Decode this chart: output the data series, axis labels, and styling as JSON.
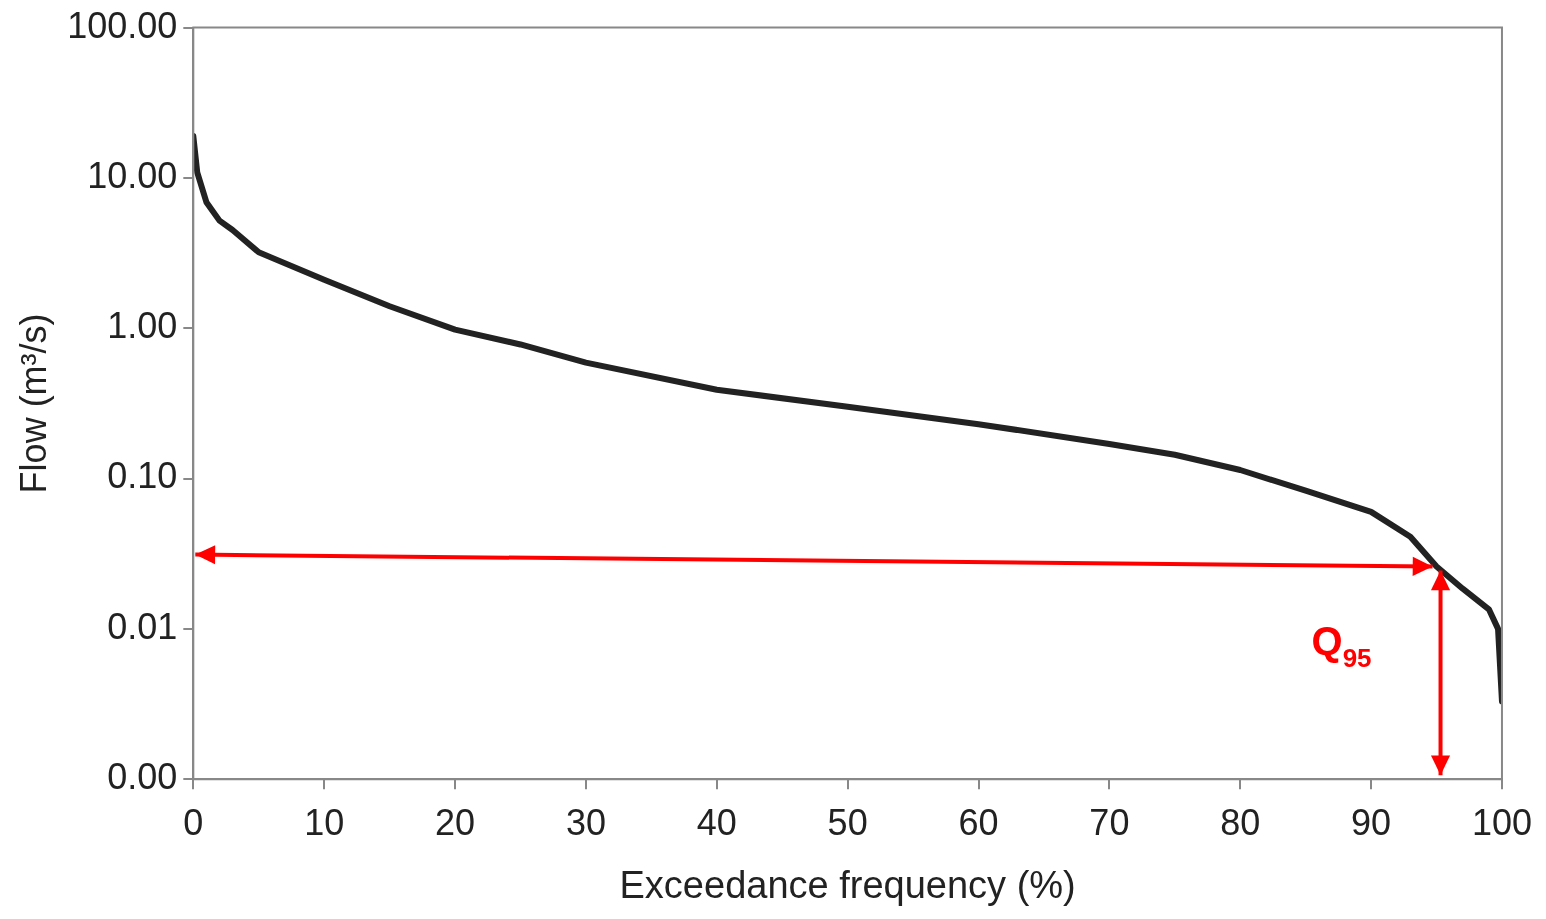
{
  "chart_data": {
    "type": "line",
    "xlabel": "Exceedance frequency (%)",
    "ylabel": "Flow (m³/s)",
    "log": "y",
    "x": [
      0,
      0.3,
      1,
      2,
      3,
      5,
      10,
      15,
      20,
      25,
      30,
      40,
      50,
      60,
      70,
      75,
      80,
      85,
      90,
      93,
      95,
      97,
      99,
      99.7,
      100
    ],
    "series": [
      {
        "color": "#222222",
        "values": [
          19,
          10.9,
          6.9,
          5.2,
          4.5,
          3.2,
          2.1,
          1.4,
          0.98,
          0.78,
          0.59,
          0.39,
          0.3,
          0.23,
          0.17,
          0.144,
          0.114,
          0.083,
          0.06,
          0.041,
          0.026,
          0.0185,
          0.0135,
          0.01,
          0.0033
        ]
      }
    ],
    "xlim": [
      0,
      100
    ],
    "xticks": [
      0,
      10,
      20,
      30,
      40,
      50,
      60,
      70,
      80,
      90,
      100
    ],
    "ylim": [
      0.001,
      100
    ],
    "yticks": [
      {
        "value": 0.001,
        "label": "0.00"
      },
      {
        "value": 0.01,
        "label": "0.01"
      },
      {
        "value": 0.1,
        "label": "0.10"
      },
      {
        "value": 1,
        "label": "1.00"
      },
      {
        "value": 10,
        "label": "10.00"
      },
      {
        "value": 100,
        "label": "100.00"
      }
    ],
    "annotations": [
      {
        "text": "Q$_{95}$",
        "x": 95,
        "y": 0.026
      }
    ],
    "legend": false,
    "marker": "none",
    "line_style": "solid"
  }
}
